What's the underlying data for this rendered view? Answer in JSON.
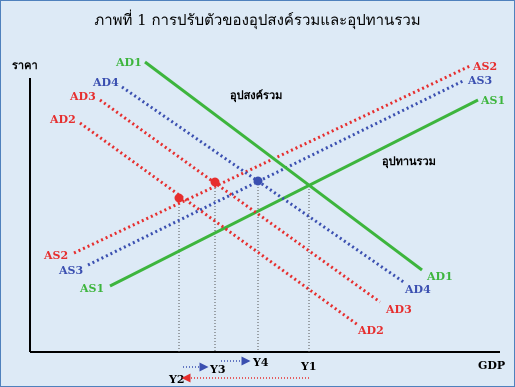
{
  "figure": {
    "title": "ภาพที่ 1  การปรับตัวของอุปสงค์รวมและอุปทานรวม",
    "y_axis_label": "ราคา",
    "x_axis_label": "GDP",
    "annotation_demand": "อุปสงค์รวม",
    "annotation_supply": "อุปทานรวม",
    "colors": {
      "background": "#ddeaf6",
      "border": "#4f81bd",
      "green": "#3db53d",
      "red": "#e62e2e",
      "blue": "#3a4fb0",
      "axis": "#000000"
    }
  },
  "curves": [
    {
      "label": "AD1",
      "color": "green",
      "style": "solid"
    },
    {
      "label": "AD4",
      "color": "blue",
      "style": "dotted"
    },
    {
      "label": "AD3",
      "color": "red",
      "style": "dotted"
    },
    {
      "label": "AD2",
      "color": "red",
      "style": "dotted"
    },
    {
      "label": "AS1",
      "color": "green",
      "style": "solid"
    },
    {
      "label": "AS3",
      "color": "blue",
      "style": "dotted"
    },
    {
      "label": "AS2",
      "color": "red",
      "style": "dotted"
    }
  ],
  "output_levels": [
    "Y1",
    "Y2",
    "Y3",
    "Y4"
  ]
}
